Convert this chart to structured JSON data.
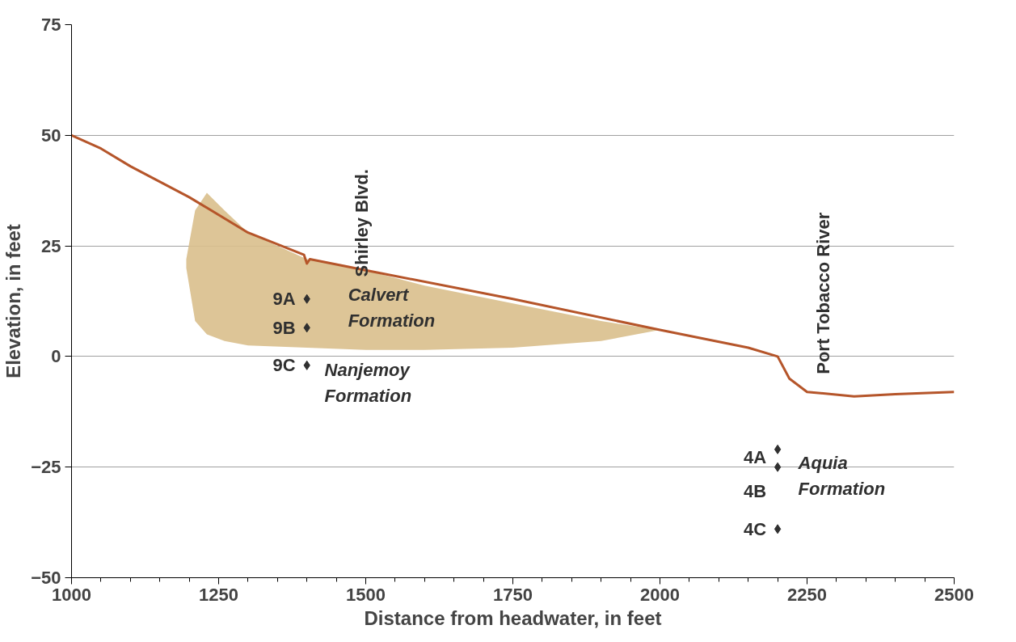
{
  "chart_data": {
    "type": "line",
    "xlabel": "Distance from headwater, in feet",
    "ylabel": "Elevation, in feet",
    "xlim": [
      1000,
      2500
    ],
    "xticks": [
      1000,
      1250,
      1500,
      1750,
      2000,
      2250,
      2500
    ],
    "ylim": [
      -50,
      75
    ],
    "yticks": [
      -50,
      -25,
      0,
      25,
      50,
      75
    ],
    "grid": "y",
    "legend": false,
    "series": [
      {
        "type": "area",
        "color": "#d9bf8c",
        "x": [
          1195,
          1210,
          1230,
          1260,
          1300,
          1400,
          1500,
          1600,
          1750,
          1900,
          2000,
          1900,
          1750,
          1600,
          1500,
          1400,
          1300,
          1260,
          1230,
          1210,
          1195
        ],
        "values": [
          22,
          33,
          37,
          33,
          28,
          22,
          19.5,
          16,
          12,
          8,
          6,
          3.5,
          2,
          1.5,
          1.5,
          2,
          2.5,
          3.5,
          5,
          8,
          20
        ]
      },
      {
        "color": "#b5552a",
        "x": [
          1000,
          1050,
          1100,
          1200,
          1300,
          1395,
          1400,
          1405,
          1500,
          1750,
          2000,
          2150,
          2200,
          2220,
          2250,
          2330,
          2400,
          2500
        ],
        "values": [
          50,
          47,
          43,
          36,
          28,
          23,
          21,
          22,
          19.5,
          13,
          6,
          2,
          0,
          -5,
          -8,
          -9,
          -8.5,
          -8
        ]
      },
      {
        "type": "scatter",
        "marker": "diamond",
        "name": "9A",
        "color": "#303030",
        "x": [
          1400
        ],
        "values": [
          13
        ]
      },
      {
        "type": "scatter",
        "marker": "diamond",
        "name": "9B",
        "color": "#303030",
        "x": [
          1400
        ],
        "values": [
          6.5
        ]
      },
      {
        "type": "scatter",
        "marker": "diamond",
        "name": "9C",
        "color": "#303030",
        "x": [
          1400
        ],
        "values": [
          -2
        ]
      },
      {
        "type": "scatter",
        "marker": "diamond",
        "name": "4A",
        "color": "#303030",
        "x": [
          2200
        ],
        "values": [
          -21
        ]
      },
      {
        "type": "scatter",
        "marker": "diamond",
        "name": "4B",
        "color": "#303030",
        "x": [
          2200
        ],
        "values": [
          -25
        ]
      },
      {
        "type": "scatter",
        "marker": "diamond",
        "name": "4C",
        "color": "#303030",
        "x": [
          2200
        ],
        "values": [
          -39
        ]
      }
    ],
    "annotations": [
      "Shirley Blvd.",
      "Port Tobacco River",
      "Calvert\nFormation",
      "Nanjemoy\nFormation",
      "Aquia\nFormation"
    ]
  }
}
